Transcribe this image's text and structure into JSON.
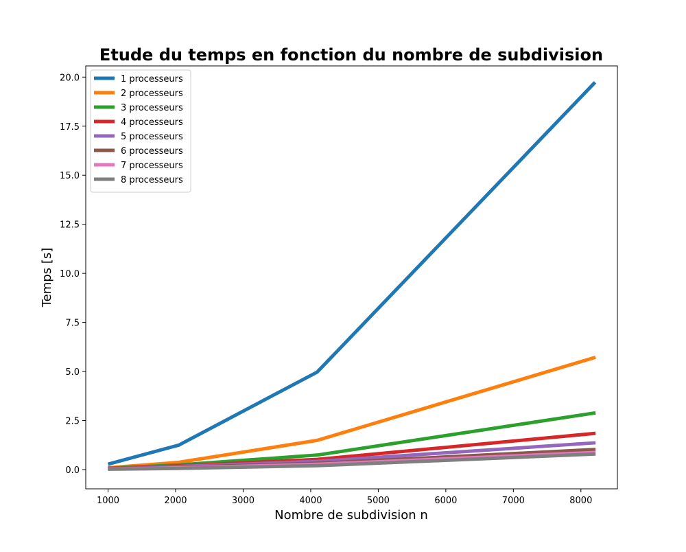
{
  "chart_data": {
    "type": "line",
    "title": "Etude du temps en fonction du nombre de subdivision",
    "xlabel": "Nombre de subdivision n",
    "ylabel": "Temps [s]",
    "xlim": [
      670,
      8540
    ],
    "ylim": [
      -0.98,
      20.57
    ],
    "xticks": [
      1000,
      2000,
      3000,
      4000,
      5000,
      6000,
      7000,
      8000
    ],
    "xtick_labels": [
      "1000",
      "2000",
      "3000",
      "4000",
      "5000",
      "6000",
      "7000",
      "8000"
    ],
    "yticks": [
      0.0,
      2.5,
      5.0,
      7.5,
      10.0,
      12.5,
      15.0,
      17.5,
      20.0
    ],
    "ytick_labels": [
      "0.0",
      "2.5",
      "5.0",
      "7.5",
      "10.0",
      "12.5",
      "15.0",
      "17.5",
      "20.0"
    ],
    "x": [
      1024,
      2048,
      4096,
      8192
    ],
    "grid": false,
    "legend_position": "upper-left",
    "series": [
      {
        "name": "1 processeurs",
        "color": "#1f77b4",
        "values": [
          0.3,
          1.25,
          4.97,
          19.67
        ]
      },
      {
        "name": "2 processeurs",
        "color": "#ff7f0e",
        "values": [
          0.1,
          0.37,
          1.49,
          5.7
        ]
      },
      {
        "name": "3 processeurs",
        "color": "#2ca02c",
        "values": [
          0.07,
          0.24,
          0.74,
          2.88
        ]
      },
      {
        "name": "4 processeurs",
        "color": "#d62728",
        "values": [
          0.06,
          0.19,
          0.52,
          1.84
        ]
      },
      {
        "name": "5 processeurs",
        "color": "#9467bd",
        "values": [
          0.05,
          0.16,
          0.42,
          1.36
        ]
      },
      {
        "name": "6 processeurs",
        "color": "#8c564b",
        "values": [
          0.04,
          0.12,
          0.32,
          1.02
        ]
      },
      {
        "name": "7 processeurs",
        "color": "#e377c2",
        "values": [
          0.03,
          0.09,
          0.27,
          0.87
        ]
      },
      {
        "name": "8 processeurs",
        "color": "#7f7f7f",
        "values": [
          0.02,
          0.06,
          0.2,
          0.79
        ]
      }
    ]
  }
}
